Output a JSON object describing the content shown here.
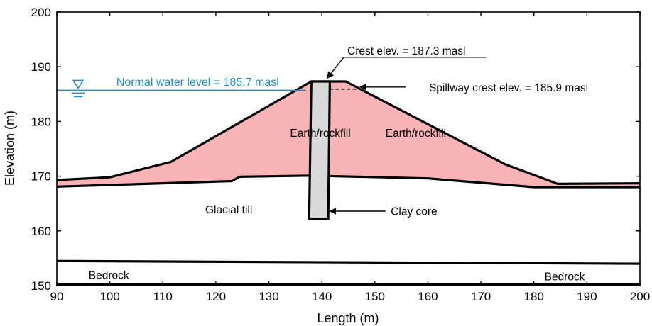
{
  "chart_data": {
    "type": "area",
    "xlabel": "Length (m)",
    "ylabel": "Elevation (m)",
    "xlim": [
      90,
      200
    ],
    "ylim": [
      150,
      200
    ],
    "xticks": [
      90,
      100,
      110,
      120,
      130,
      140,
      150,
      160,
      170,
      180,
      190,
      200
    ],
    "yticks": [
      150,
      160,
      170,
      180,
      190,
      200
    ],
    "grid": false,
    "colors": {
      "fill": "#f7b3b6",
      "core": "#d9d9d9",
      "water": "#1e8fd5",
      "line": "#000000"
    },
    "layers": [
      {
        "name": "Earth/rockfill",
        "label_pos": [
          134,
          177.2
        ]
      },
      {
        "name": "Earth/rockfill",
        "label_pos": [
          152,
          177.2
        ]
      },
      {
        "name": "Glacial till",
        "label_pos": [
          118,
          163.2
        ]
      },
      {
        "name": "Bedrock",
        "label_pos": [
          96,
          151.2
        ]
      },
      {
        "name": "Bedrock",
        "label_pos": [
          182,
          151
        ]
      }
    ],
    "embankment_outline": [
      [
        90,
        169.3
      ],
      [
        100,
        169.8
      ],
      [
        111.5,
        172.6
      ],
      [
        138,
        187.3
      ],
      [
        144.5,
        187.3
      ],
      [
        174.5,
        172.2
      ],
      [
        184.5,
        168.6
      ],
      [
        200,
        168.7
      ]
    ],
    "foundation_top": [
      [
        90,
        168.1
      ],
      [
        100,
        168.4
      ],
      [
        123,
        169.1
      ],
      [
        124.5,
        169.9
      ],
      [
        138,
        170.1
      ],
      [
        160,
        169.6
      ],
      [
        180,
        168
      ],
      [
        200,
        168
      ]
    ],
    "bedrock_top": [
      [
        90,
        154.5
      ],
      [
        200,
        154
      ]
    ],
    "bedrock_bottom": [
      [
        90,
        150.2
      ],
      [
        200,
        150.2
      ]
    ],
    "clay_core": [
      [
        138,
        187.3
      ],
      [
        141.5,
        187.3
      ],
      [
        141.2,
        162.2
      ],
      [
        137.6,
        162.2
      ]
    ],
    "water": {
      "level": 185.7,
      "x_range": [
        90,
        137
      ],
      "label": "Normal water level = 185.7 masl",
      "label_at": [
        94,
        186.5
      ]
    },
    "spillway": {
      "level": 185.9,
      "x_range": [
        141.5,
        146.5
      ]
    },
    "annotations": [
      {
        "text": "Crest elev. = 187.3 masl",
        "text_at": [
          144.8,
          192.2
        ],
        "leader_to": [
          171,
          192
        ],
        "arrow_to": [
          141,
          187.9
        ]
      },
      {
        "text": "Spillway crest elev. = 185.9 masl",
        "text_at": [
          160.2,
          185.5
        ],
        "arrow_from": [
          155.8,
          186.3
        ],
        "arrow_to": [
          147.2,
          186.3
        ]
      },
      {
        "text": "Clay core",
        "text_at": [
          153,
          162.9
        ],
        "arrow_from": [
          152,
          163.6
        ],
        "arrow_to": [
          141.5,
          163.6
        ]
      }
    ]
  }
}
